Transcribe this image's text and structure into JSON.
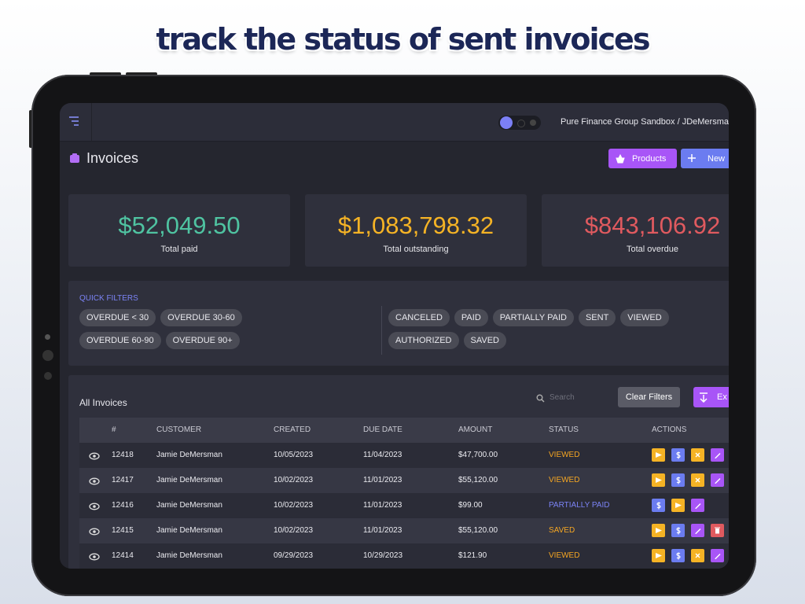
{
  "headline": "track the status of sent invoices",
  "topbar": {
    "org": "Pure Finance Group Sandbox / JDeMersmanSa"
  },
  "page": {
    "title": "Invoices",
    "buttons": [
      "Products",
      "New"
    ]
  },
  "stats": [
    {
      "value": "$52,049.50",
      "label": "Total paid"
    },
    {
      "value": "$1,083,798.32",
      "label": "Total outstanding"
    },
    {
      "value": "$843,106.92",
      "label": "Total overdue"
    }
  ],
  "filters": {
    "title": "QUICK FILTERS",
    "overdue": [
      "OVERDUE < 30",
      "OVERDUE 30-60",
      "OVERDUE 60-90",
      "OVERDUE 90+"
    ],
    "status": [
      "CANCELED",
      "PAID",
      "PARTIALLY PAID",
      "SENT",
      "VIEWED",
      "AUTHORIZED",
      "SAVED"
    ]
  },
  "invoices": {
    "title": "All Invoices",
    "search_placeholder": "Search",
    "clear": "Clear Filters",
    "export": "Ex",
    "columns": [
      "#",
      "CUSTOMER",
      "CREATED",
      "DUE DATE",
      "AMOUNT",
      "STATUS",
      "ACTIONS"
    ],
    "rows": [
      [
        "12418",
        "Jamie DeMersman",
        "10/05/2023",
        "11/04/2023",
        "$47,700.00",
        "VIEWED"
      ],
      [
        "12417",
        "Jamie DeMersman",
        "10/02/2023",
        "11/01/2023",
        "$55,120.00",
        "VIEWED"
      ],
      [
        "12416",
        "Jamie DeMersman",
        "10/02/2023",
        "11/01/2023",
        "$99.00",
        "PARTIALLY PAID"
      ],
      [
        "12415",
        "Jamie DeMersman",
        "10/02/2023",
        "11/01/2023",
        "$55,120.00",
        "SAVED"
      ],
      [
        "12414",
        "Jamie DeMersman",
        "09/29/2023",
        "10/29/2023",
        "$121.90",
        "VIEWED"
      ]
    ]
  }
}
